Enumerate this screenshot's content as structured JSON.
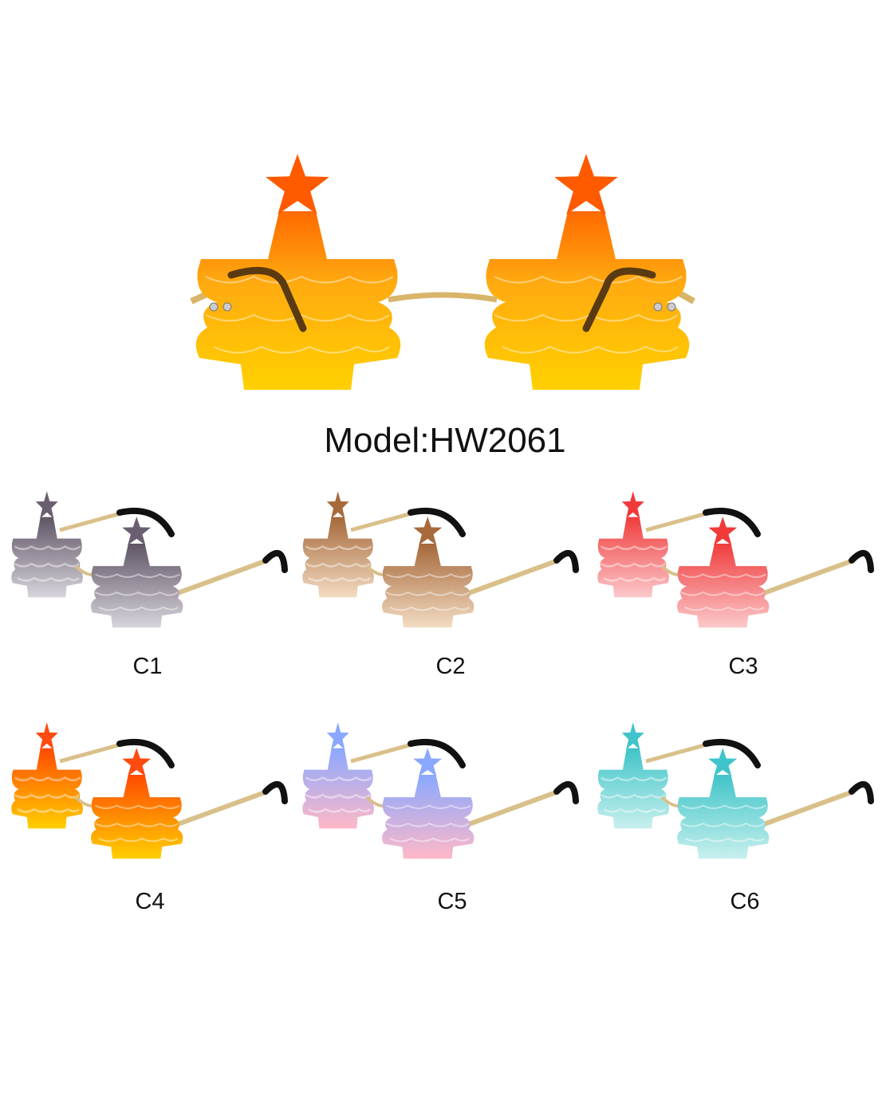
{
  "model_label": "Model:HW2061",
  "main": {
    "top": "#ff6a00",
    "mid": "#ffaa10",
    "bottom": "#ffd000",
    "star": "#ff5a00"
  },
  "variants": [
    {
      "label": "C1",
      "top": "#5f5565",
      "bottom": "#d8d4dc",
      "star": "#6a5f70"
    },
    {
      "label": "C2",
      "top": "#a5683a",
      "bottom": "#f3dcc2",
      "star": "#a86a3c"
    },
    {
      "label": "C3",
      "top": "#f03c3c",
      "bottom": "#fbc9cc",
      "star": "#f03a3a"
    },
    {
      "label": "C4",
      "top": "#ff4a00",
      "bottom": "#ffcf00",
      "star": "#ff4a10"
    },
    {
      "label": "C5",
      "top": "#8aa8ff",
      "bottom": "#ffb8c8",
      "star": "#8aa8ff"
    },
    {
      "label": "C6",
      "top": "#40c4c8",
      "bottom": "#c8f0ee",
      "star": "#40c4cc"
    }
  ]
}
